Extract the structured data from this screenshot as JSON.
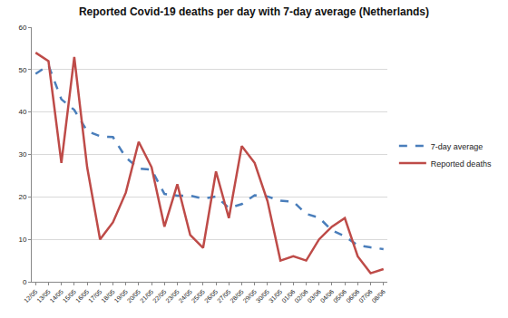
{
  "chart_data": {
    "type": "line",
    "title": "Reported Covid-19 deaths per day with 7-day average (Netherlands)",
    "categories": [
      "12/05",
      "13/05",
      "14/05",
      "15/05",
      "16/05",
      "17/05",
      "18/05",
      "19/05",
      "20/05",
      "21/05",
      "22/05",
      "23/05",
      "24/05",
      "25/05",
      "26/05",
      "27/05",
      "28/05",
      "29/05",
      "30/05",
      "31/05",
      "01/06",
      "02/06",
      "03/06",
      "04/06",
      "05/06",
      "06/06",
      "07/06",
      "08/06"
    ],
    "series": [
      {
        "name": "7-day average",
        "color": "#4a7ebb",
        "line_style": "dashed",
        "values": [
          49,
          51,
          43,
          40.5,
          35.5,
          34.3,
          34.1,
          29.3,
          26.7,
          26.4,
          20.7,
          20.3,
          20.3,
          19.6,
          20.1,
          17.4,
          18.3,
          20.4,
          20.1,
          19.1,
          18.9,
          16,
          15.1,
          12.1,
          10.7,
          8.6,
          8.1,
          7.7
        ]
      },
      {
        "name": "Reported deaths",
        "color": "#be4b48",
        "line_style": "solid",
        "values": [
          54,
          52,
          28,
          53,
          27,
          10,
          14,
          21,
          33,
          27,
          13,
          23,
          11,
          8,
          26,
          15,
          32,
          28,
          19,
          5,
          6,
          5,
          10,
          13,
          15,
          6,
          2,
          3
        ]
      }
    ],
    "ylim": [
      0,
      60
    ],
    "yticks": [
      0,
      10,
      20,
      30,
      40,
      50,
      60
    ],
    "grid": true,
    "legend": "right"
  }
}
